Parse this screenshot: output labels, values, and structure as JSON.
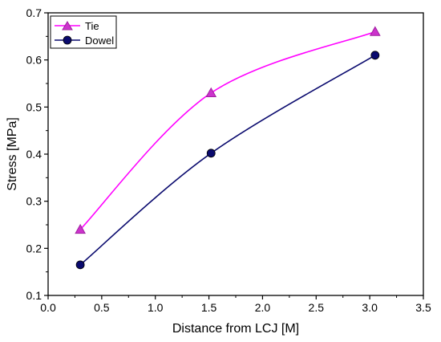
{
  "chart_data": {
    "type": "line",
    "xlabel": "Distance from LCJ [M]",
    "ylabel": "Stress [MPa]",
    "xlim": [
      0.0,
      3.5
    ],
    "ylim": [
      0.1,
      0.7
    ],
    "x_ticks": [
      "0.0",
      "0.5",
      "1.0",
      "1.5",
      "2.0",
      "2.5",
      "3.0",
      "3.5"
    ],
    "y_ticks": [
      "0.1",
      "0.2",
      "0.3",
      "0.4",
      "0.5",
      "0.6",
      "0.7"
    ],
    "grid": false,
    "legend_position": "top-left",
    "series": [
      {
        "name": "Tie",
        "marker": "triangle",
        "color": "#ff00ff",
        "marker_fill": "#cc33cc",
        "points": [
          [
            0.3,
            0.24
          ],
          [
            1.52,
            0.53
          ],
          [
            3.05,
            0.66
          ]
        ]
      },
      {
        "name": "Dowel",
        "marker": "circle",
        "color": "#0a0a6e",
        "marker_fill": "#0a0a6e",
        "points": [
          [
            0.3,
            0.165
          ],
          [
            1.52,
            0.402
          ],
          [
            3.05,
            0.61
          ]
        ]
      }
    ]
  }
}
